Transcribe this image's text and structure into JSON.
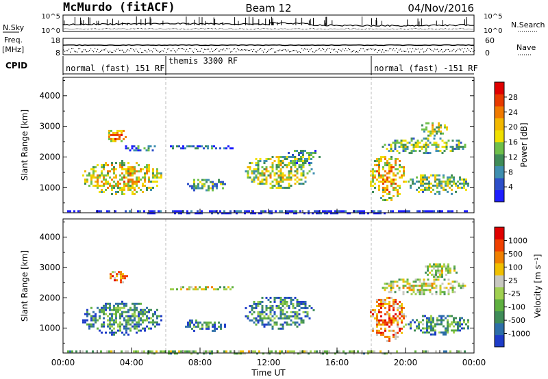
{
  "header": {
    "title": "McMurdo (fitACF)",
    "beam": "Beam 12",
    "date": "04/Nov/2016"
  },
  "noise_panel": {
    "left_label": "N.Sky",
    "right_label": "N.Search",
    "left_ticks": [
      "10^5",
      "10^0"
    ],
    "right_ticks": [
      "10^5",
      "10^0"
    ]
  },
  "freq_panel": {
    "left_label": "Freq.",
    "left_unit": "[MHz]",
    "left_ticks": [
      "18",
      "8"
    ],
    "right_label": "Nave",
    "right_ticks": [
      "60",
      "0"
    ]
  },
  "cpid_panel": {
    "label": "CPID",
    "segments": [
      {
        "start": 0,
        "end": 6,
        "text": "normal (fast) 151 RF"
      },
      {
        "start": 6,
        "end": 18,
        "text": "themis 3300 RF"
      },
      {
        "start": 18,
        "end": 24,
        "text": "normal (fast) -151 RF"
      }
    ]
  },
  "chart_data": [
    {
      "type": "heatmap",
      "name": "power-panel",
      "ylabel": "Slant Range [km]",
      "ylim": [
        180,
        4600
      ],
      "yticks": [
        1000,
        2000,
        3000,
        4000
      ],
      "xlim": [
        0,
        24
      ],
      "colorbar": {
        "label": "Power [dB]",
        "ticks": [
          "4",
          "8",
          "12",
          "16",
          "20",
          "24",
          "28"
        ],
        "colors": [
          "#1e1eff",
          "#2d4fc9",
          "#3f8fb0",
          "#3f8c58",
          "#6fc04a",
          "#f0e000",
          "#f2b800",
          "#f07a00",
          "#e83a00",
          "#e00000"
        ]
      },
      "echo_regions": [
        {
          "t0": 1.0,
          "t1": 5.8,
          "r0": 800,
          "r1": 1900,
          "level": 0.62
        },
        {
          "t0": 2.4,
          "t1": 3.8,
          "r0": 2500,
          "r1": 2950,
          "level": 0.75
        },
        {
          "t0": 3.5,
          "t1": 5.5,
          "r0": 2200,
          "r1": 2450,
          "level": 0.3
        },
        {
          "t0": 6.0,
          "t1": 10.0,
          "r0": 2250,
          "r1": 2450,
          "level": 0.25
        },
        {
          "t0": 7.0,
          "t1": 9.5,
          "r0": 900,
          "r1": 1350,
          "level": 0.4
        },
        {
          "t0": 10.5,
          "t1": 14.6,
          "r0": 1000,
          "r1": 2100,
          "level": 0.55
        },
        {
          "t0": 13.0,
          "t1": 15.0,
          "r0": 1800,
          "r1": 2300,
          "level": 0.4
        },
        {
          "t0": 17.8,
          "t1": 20.0,
          "r0": 600,
          "r1": 2100,
          "level": 0.65
        },
        {
          "t0": 18.5,
          "t1": 23.5,
          "r0": 2100,
          "r1": 2700,
          "level": 0.45
        },
        {
          "t0": 20.8,
          "t1": 22.5,
          "r0": 2700,
          "r1": 3200,
          "level": 0.55
        },
        {
          "t0": 20.0,
          "t1": 23.8,
          "r0": 800,
          "r1": 1500,
          "level": 0.5
        },
        {
          "t0": 0.0,
          "t1": 24.0,
          "r0": 180,
          "r1": 330,
          "level": 0.1
        }
      ]
    },
    {
      "type": "heatmap",
      "name": "velocity-panel",
      "ylabel": "Slant Range [km]",
      "ylim": [
        180,
        4600
      ],
      "yticks": [
        1000,
        2000,
        3000,
        4000
      ],
      "xlim": [
        0,
        24
      ],
      "xlabel": "Time UT",
      "xticks": [
        "00:00",
        "04:00",
        "08:00",
        "12:00",
        "16:00",
        "20:00",
        "00:00"
      ],
      "colorbar": {
        "label": "Velocity [m s⁻¹]",
        "ticks": [
          "1000",
          "500",
          "100",
          "25",
          "-25",
          "-100",
          "-500",
          "-1000"
        ],
        "colors": [
          "#1e3cc8",
          "#2d6ea8",
          "#3f8c58",
          "#5fb040",
          "#a0d050",
          "#c8c8c0",
          "#f0c000",
          "#f08000",
          "#f04000",
          "#e00000"
        ]
      },
      "echo_regions": [
        {
          "t0": 1.0,
          "t1": 5.8,
          "r0": 800,
          "r1": 1900,
          "level": 0.3
        },
        {
          "t0": 2.6,
          "t1": 3.8,
          "r0": 2500,
          "r1": 2950,
          "level": 0.8
        },
        {
          "t0": 6.0,
          "t1": 10.0,
          "r0": 2250,
          "r1": 2450,
          "level": 0.55
        },
        {
          "t0": 7.0,
          "t1": 9.5,
          "r0": 900,
          "r1": 1350,
          "level": 0.25
        },
        {
          "t0": 10.5,
          "t1": 14.6,
          "r0": 1000,
          "r1": 2100,
          "level": 0.3
        },
        {
          "t0": 17.8,
          "t1": 20.0,
          "r0": 600,
          "r1": 2100,
          "level": 0.82
        },
        {
          "t0": 18.5,
          "t1": 23.5,
          "r0": 2100,
          "r1": 2700,
          "level": 0.55
        },
        {
          "t0": 21.0,
          "t1": 23.0,
          "r0": 2700,
          "r1": 3200,
          "level": 0.55
        },
        {
          "t0": 20.0,
          "t1": 23.8,
          "r0": 800,
          "r1": 1500,
          "level": 0.35
        },
        {
          "t0": 0.0,
          "t1": 24.0,
          "r0": 180,
          "r1": 330,
          "level": 0.5
        }
      ]
    }
  ]
}
